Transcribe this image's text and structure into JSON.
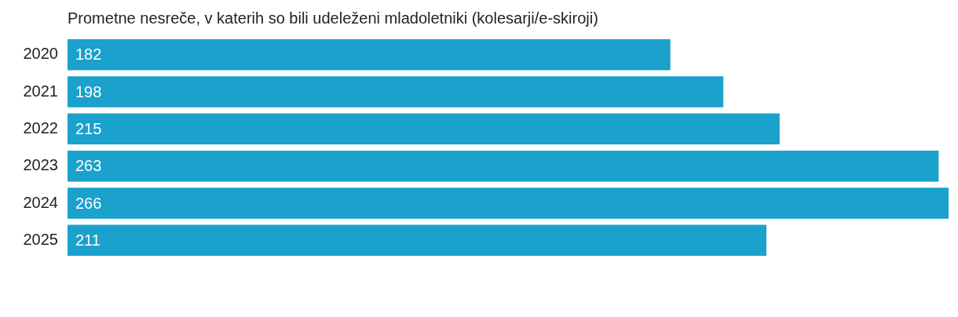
{
  "chart_data": {
    "type": "bar",
    "orientation": "horizontal",
    "title": "Prometne nesreče, v katerih so bili udeleženi mladoletniki (kolesarji/e-skiroji)",
    "categories": [
      "2020",
      "2021",
      "2022",
      "2023",
      "2024",
      "2025"
    ],
    "values": [
      182,
      198,
      215,
      263,
      266,
      211
    ],
    "color": "#1aa1cc",
    "data_labels": true
  }
}
